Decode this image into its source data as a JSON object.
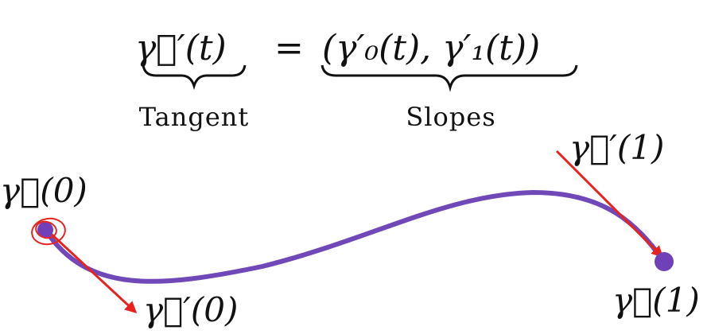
{
  "equation": {
    "lhs": "γ⃗′(t)",
    "equals": "=",
    "rhs": "(γ′₀(t), γ′₁(t))",
    "lhs_caption": "Tangent",
    "rhs_caption": "Slopes"
  },
  "points": {
    "start_label": "γ⃗(0)",
    "end_label": "γ⃗(1)"
  },
  "tangents": {
    "start_label": "γ⃗′(0)",
    "end_label": "γ⃗′(1)"
  },
  "colors": {
    "curve": "#7048b8",
    "point": "#7040b8",
    "tangent": "#e8231f",
    "highlight": "#e8231f",
    "text": "#111111"
  }
}
